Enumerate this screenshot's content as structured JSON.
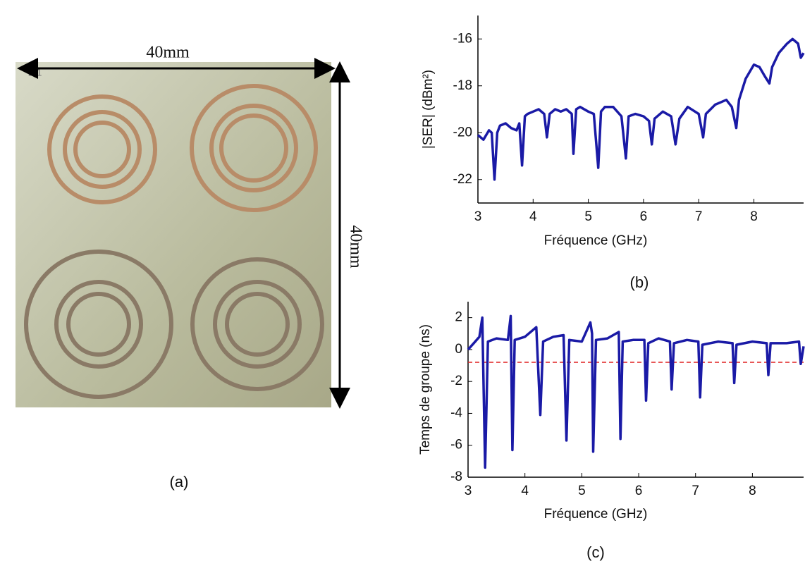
{
  "photo": {
    "width_label": "40mm",
    "height_label": "40mm",
    "corner_mark": "2 1",
    "caption": "(a)"
  },
  "chart_data": [
    {
      "type": "line",
      "caption": "(b)",
      "xlabel": "Fréquence (GHz)",
      "ylabel": "|SER| (dBm²)",
      "xlim": [
        3,
        8.9
      ],
      "ylim": [
        -23,
        -15
      ],
      "xticks": [
        3,
        4,
        5,
        6,
        7,
        8
      ],
      "yticks": [
        -22,
        -20,
        -18,
        -16
      ],
      "x": [
        3.0,
        3.1,
        3.2,
        3.25,
        3.3,
        3.35,
        3.4,
        3.5,
        3.6,
        3.7,
        3.75,
        3.8,
        3.85,
        3.9,
        4.0,
        4.1,
        4.2,
        4.25,
        4.3,
        4.4,
        4.5,
        4.6,
        4.7,
        4.73,
        4.78,
        4.85,
        5.0,
        5.1,
        5.18,
        5.23,
        5.3,
        5.45,
        5.6,
        5.68,
        5.73,
        5.85,
        6.0,
        6.1,
        6.15,
        6.2,
        6.35,
        6.5,
        6.58,
        6.65,
        6.8,
        7.0,
        7.08,
        7.13,
        7.3,
        7.5,
        7.6,
        7.68,
        7.73,
        7.85,
        8.0,
        8.1,
        8.2,
        8.28,
        8.33,
        8.45,
        8.6,
        8.7,
        8.8,
        8.85,
        8.9
      ],
      "series": [
        {
          "color": "#1a1aa6",
          "values": [
            -20.1,
            -20.3,
            -19.9,
            -20.0,
            -22.0,
            -20.0,
            -19.7,
            -19.6,
            -19.8,
            -19.9,
            -19.6,
            -21.4,
            -19.3,
            -19.2,
            -19.1,
            -19.0,
            -19.2,
            -20.2,
            -19.2,
            -19.0,
            -19.1,
            -19.0,
            -19.2,
            -20.9,
            -19.0,
            -18.9,
            -19.1,
            -19.2,
            -21.5,
            -19.1,
            -18.9,
            -18.9,
            -19.3,
            -21.1,
            -19.3,
            -19.2,
            -19.3,
            -19.5,
            -20.5,
            -19.4,
            -19.1,
            -19.3,
            -20.5,
            -19.4,
            -18.9,
            -19.2,
            -20.2,
            -19.2,
            -18.8,
            -18.6,
            -18.9,
            -19.8,
            -18.6,
            -17.7,
            -17.1,
            -17.2,
            -17.6,
            -17.9,
            -17.2,
            -16.6,
            -16.2,
            -16.0,
            -16.2,
            -16.8,
            -16.6
          ]
        }
      ]
    },
    {
      "type": "line",
      "caption": "(c)",
      "xlabel": "Fréquence (GHz)",
      "ylabel": "Temps de groupe (ns)",
      "xlim": [
        3,
        8.9
      ],
      "ylim": [
        -8,
        3
      ],
      "xticks": [
        3,
        4,
        5,
        6,
        7,
        8
      ],
      "yticks": [
        -8,
        -6,
        -4,
        -2,
        0,
        2
      ],
      "hline": {
        "value": -0.8,
        "color": "#e02020"
      },
      "x": [
        3.0,
        3.1,
        3.2,
        3.25,
        3.3,
        3.35,
        3.5,
        3.7,
        3.75,
        3.78,
        3.82,
        4.0,
        4.2,
        4.27,
        4.32,
        4.5,
        4.68,
        4.73,
        4.78,
        5.0,
        5.15,
        5.18,
        5.2,
        5.25,
        5.45,
        5.65,
        5.68,
        5.72,
        5.9,
        6.1,
        6.13,
        6.17,
        6.35,
        6.55,
        6.58,
        6.62,
        6.85,
        7.05,
        7.08,
        7.12,
        7.4,
        7.65,
        7.68,
        7.72,
        8.0,
        8.25,
        8.28,
        8.32,
        8.6,
        8.82,
        8.85,
        8.9
      ],
      "series": [
        {
          "color": "#1a1aa6",
          "values": [
            0.0,
            0.4,
            0.8,
            2.0,
            -7.4,
            0.5,
            0.7,
            0.6,
            2.1,
            -6.3,
            0.6,
            0.8,
            1.4,
            -4.1,
            0.5,
            0.8,
            0.9,
            -5.7,
            0.6,
            0.5,
            1.7,
            1.0,
            -6.4,
            0.6,
            0.7,
            1.1,
            -5.6,
            0.5,
            0.6,
            0.6,
            -3.2,
            0.4,
            0.7,
            0.5,
            -2.5,
            0.4,
            0.6,
            0.5,
            -3.0,
            0.3,
            0.5,
            0.4,
            -2.1,
            0.3,
            0.5,
            0.4,
            -1.6,
            0.4,
            0.4,
            0.5,
            -0.9,
            0.2
          ]
        }
      ]
    }
  ]
}
